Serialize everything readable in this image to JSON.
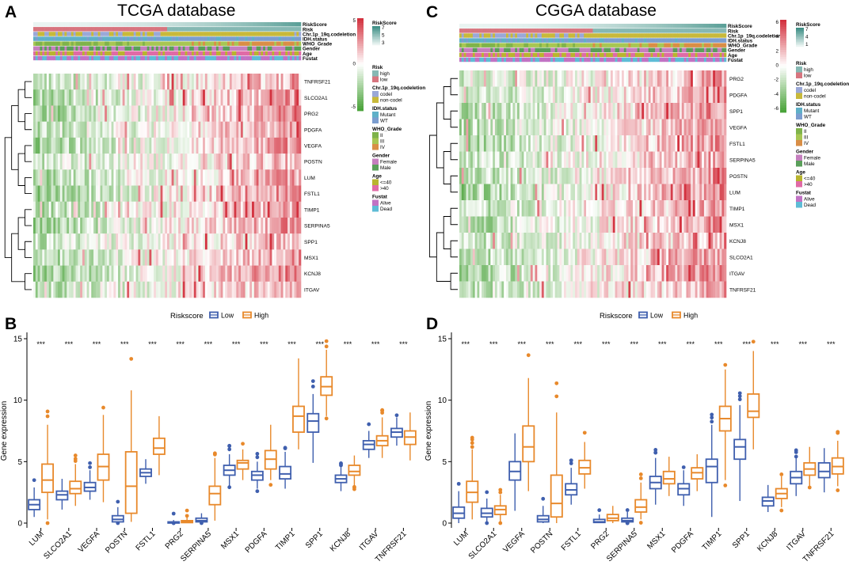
{
  "colors": {
    "low": "#3f5fae",
    "high": "#e8892b",
    "heat_neg": "#4aa33a",
    "heat_pos": "#d3323f",
    "risk_high": "#86b8b3",
    "risk_low": "#d7757f",
    "codel": "#9aa8d8",
    "noncodel": "#c8b93a",
    "mutant": "#5fb0c8",
    "wt": "#7b9dcf",
    "grade2": "#7fb34a",
    "grade3": "#a7c653",
    "grade4": "#d98e46",
    "female": "#c57fbe",
    "male": "#5a9f5a",
    "age_le40": "#b8b42e",
    "age_gt40": "#e06aa6",
    "alive": "#c173c4",
    "dead": "#5ebcd6"
  },
  "panels": {
    "A": {
      "letter": "A",
      "title": "TCGA database"
    },
    "C": {
      "letter": "C",
      "title": "CGGA database"
    },
    "B": {
      "letter": "B"
    },
    "D": {
      "letter": "D"
    }
  },
  "annotation_labels": [
    "RiskScore",
    "Risk",
    "Chr.1p_19q.codeletion",
    "IDH.status",
    "WHO_Grade",
    "Gender",
    "Age",
    "Fustat"
  ],
  "legend_tcga": {
    "scale_title": "RiskScore",
    "scale_ticks": [
      "7",
      "5",
      "3"
    ],
    "heat_ticks": [
      "5",
      "0",
      "-5"
    ],
    "groups": [
      {
        "title": "Risk",
        "items": [
          "high",
          "low"
        ]
      },
      {
        "title": "Chr.1p_19q.codeletion",
        "items": [
          "codel",
          "non-codel"
        ]
      },
      {
        "title": "IDH.status",
        "items": [
          "Mutant",
          "WT"
        ]
      },
      {
        "title": "WHO_Grade",
        "items": [
          "II",
          "III",
          "IV"
        ]
      },
      {
        "title": "Gender",
        "items": [
          "Female",
          "Male"
        ]
      },
      {
        "title": "Age",
        "items": [
          "<=40",
          ">40"
        ]
      },
      {
        "title": "Fustat",
        "items": [
          "Alive",
          "Dead"
        ]
      }
    ]
  },
  "legend_cgga": {
    "scale_title": "RiskScore",
    "scale_ticks": [
      "7",
      "4",
      "1"
    ],
    "heat_ticks": [
      "6",
      "4",
      "2",
      "0",
      "-2",
      "-4",
      "-6"
    ],
    "groups": [
      {
        "title": "Risk",
        "items": [
          "high",
          "low"
        ]
      },
      {
        "title": "Chr.1p_19q.codeletion",
        "items": [
          "codel",
          "non-codel"
        ]
      },
      {
        "title": "IDH.status",
        "items": [
          "Mutant",
          "WT"
        ]
      },
      {
        "title": "WHO_Grade",
        "items": [
          "II",
          "III",
          "IV"
        ]
      },
      {
        "title": "Gender",
        "items": [
          "Female",
          "Male"
        ]
      },
      {
        "title": "Age",
        "items": [
          "<=40",
          ">40"
        ]
      },
      {
        "title": "Fustat",
        "items": [
          "Alive",
          "Dead"
        ]
      }
    ]
  },
  "chart_data": [
    {
      "type": "heatmap",
      "panel": "A",
      "title": "TCGA database",
      "rows": [
        "TNFRSF21",
        "SLCO2A1",
        "PRG2",
        "PDGFA",
        "VEGFA",
        "POSTN",
        "LUM",
        "FSTL1",
        "TIMP1",
        "SERPINA5",
        "SPP1",
        "MSX1",
        "KCNJ8",
        "ITGAV"
      ],
      "value_range": [
        -5,
        7
      ],
      "risk_split_fraction": 0.5
    },
    {
      "type": "heatmap",
      "panel": "C",
      "title": "CGGA database",
      "rows": [
        "PRG2",
        "PDGFA",
        "SPP1",
        "VEGFA",
        "FSTL1",
        "SERPINA5",
        "POSTN",
        "LUM",
        "TIMP1",
        "MSX1",
        "KCNJ8",
        "SLCO2A1",
        "ITGAV",
        "TNFRSF21"
      ],
      "value_range": [
        -6,
        6
      ],
      "risk_split_fraction": 0.5
    },
    {
      "type": "box",
      "panel": "B",
      "legend_title": "Riskscore",
      "legend_items": [
        "Low",
        "High"
      ],
      "ylabel": "Gene expression",
      "ylim": [
        0,
        15
      ],
      "yticks": [
        0,
        5,
        10,
        15
      ],
      "significance": "***",
      "categories": [
        "LUM",
        "SLCO2A1",
        "VEGFA",
        "POSTN",
        "FSTL1",
        "PRG2",
        "SERPINA5",
        "MSX1",
        "PDGFA",
        "TIMP1",
        "SPP1",
        "KCNJ8",
        "ITGAV",
        "TNFRSF21"
      ],
      "series": [
        {
          "name": "Low",
          "boxes": [
            [
              0.5,
              1.1,
              1.5,
              1.9,
              2.9
            ],
            [
              1.1,
              1.9,
              2.3,
              2.6,
              3.6
            ],
            [
              1.9,
              2.6,
              2.9,
              3.3,
              4.3
            ],
            [
              0.0,
              0.1,
              0.3,
              0.6,
              1.3
            ],
            [
              3.2,
              3.8,
              4.1,
              4.4,
              5.2
            ],
            [
              0.0,
              0.02,
              0.05,
              0.1,
              0.25
            ],
            [
              0.0,
              0.1,
              0.2,
              0.4,
              0.8
            ],
            [
              3.0,
              3.9,
              4.3,
              4.7,
              5.6
            ],
            [
              2.8,
              3.5,
              3.9,
              4.2,
              5.0
            ],
            [
              2.8,
              3.6,
              4.0,
              4.6,
              5.8
            ],
            [
              4.9,
              7.4,
              8.3,
              8.9,
              10.5
            ],
            [
              2.6,
              3.3,
              3.6,
              3.9,
              4.6
            ],
            [
              5.3,
              6.0,
              6.4,
              6.7,
              7.5
            ],
            [
              6.3,
              7.0,
              7.4,
              7.7,
              8.6
            ]
          ]
        },
        {
          "name": "High",
          "boxes": [
            [
              0.3,
              2.5,
              3.5,
              4.8,
              8.0
            ],
            [
              1.4,
              2.4,
              2.8,
              3.4,
              4.8
            ],
            [
              1.7,
              3.5,
              4.6,
              5.6,
              8.8
            ],
            [
              0.1,
              0.8,
              3.0,
              5.8,
              10.8
            ],
            [
              3.9,
              5.6,
              6.1,
              6.9,
              8.7
            ],
            [
              0.0,
              0.04,
              0.1,
              0.2,
              0.45
            ],
            [
              0.2,
              1.5,
              2.4,
              3.0,
              5.3
            ],
            [
              3.5,
              4.4,
              4.9,
              5.1,
              6.0
            ],
            [
              3.5,
              4.4,
              5.2,
              5.9,
              8.0
            ],
            [
              6.0,
              7.4,
              8.7,
              9.5,
              13.4
            ],
            [
              8.7,
              10.4,
              11.1,
              11.9,
              14.1
            ],
            [
              3.0,
              3.9,
              4.2,
              4.7,
              5.5
            ],
            [
              5.3,
              6.3,
              6.7,
              7.1,
              8.6
            ],
            [
              5.1,
              6.4,
              7.0,
              7.5,
              9.0
            ]
          ]
        }
      ]
    },
    {
      "type": "box",
      "panel": "D",
      "legend_title": "Riskscore",
      "legend_items": [
        "Low",
        "High"
      ],
      "ylabel": "Gene expression",
      "ylim": [
        0,
        15
      ],
      "yticks": [
        0,
        5,
        10,
        15
      ],
      "significance": "***",
      "categories": [
        "LUM",
        "SLCO2A1",
        "VEGFA",
        "POSTN",
        "FSTL1",
        "PRG2",
        "SERPINA5",
        "MSX1",
        "PDGFA",
        "TIMP1",
        "SPP1",
        "KCNJ8",
        "ITGAV",
        "TNFRSF21"
      ],
      "series": [
        {
          "name": "Low",
          "boxes": [
            [
              0.0,
              0.4,
              0.8,
              1.3,
              2.6
            ],
            [
              0.1,
              0.5,
              0.8,
              1.2,
              2.0
            ],
            [
              1.0,
              3.5,
              4.2,
              5.0,
              7.3
            ],
            [
              0.0,
              0.1,
              0.3,
              0.6,
              1.4
            ],
            [
              1.5,
              2.3,
              2.7,
              3.2,
              4.5
            ],
            [
              0.0,
              0.05,
              0.1,
              0.3,
              0.7
            ],
            [
              0.0,
              0.1,
              0.2,
              0.4,
              0.9
            ],
            [
              1.5,
              2.8,
              3.3,
              3.8,
              5.3
            ],
            [
              1.4,
              2.3,
              2.8,
              3.2,
              4.3
            ],
            [
              0.5,
              3.3,
              4.6,
              5.2,
              8.0
            ],
            [
              1.8,
              5.2,
              6.2,
              6.8,
              9.6
            ],
            [
              0.9,
              1.4,
              1.8,
              2.1,
              3.1
            ],
            [
              2.2,
              3.2,
              3.7,
              4.2,
              5.3
            ],
            [
              2.5,
              3.7,
              4.2,
              4.9,
              6.1
            ]
          ]
        },
        {
          "name": "High",
          "boxes": [
            [
              0.3,
              1.7,
              2.5,
              3.4,
              6.0
            ],
            [
              0.1,
              0.7,
              1.1,
              1.4,
              2.3
            ],
            [
              2.6,
              5.0,
              6.2,
              7.9,
              11.8
            ],
            [
              0.0,
              0.5,
              1.6,
              3.9,
              9.0
            ],
            [
              2.8,
              4.0,
              4.5,
              5.1,
              6.6
            ],
            [
              0.0,
              0.2,
              0.4,
              0.7,
              1.4
            ],
            [
              0.3,
              0.9,
              1.3,
              1.9,
              3.3
            ],
            [
              2.2,
              3.2,
              3.6,
              4.2,
              5.4
            ],
            [
              2.6,
              3.6,
              4.1,
              4.5,
              5.6
            ],
            [
              3.5,
              7.5,
              8.5,
              9.5,
              12.5
            ],
            [
              6.0,
              8.6,
              9.1,
              10.5,
              14.0
            ],
            [
              1.3,
              2.0,
              2.4,
              2.8,
              3.8
            ],
            [
              3.0,
              3.9,
              4.4,
              4.9,
              6.2
            ],
            [
              3.0,
              4.0,
              4.6,
              5.3,
              6.7
            ]
          ]
        }
      ]
    }
  ]
}
